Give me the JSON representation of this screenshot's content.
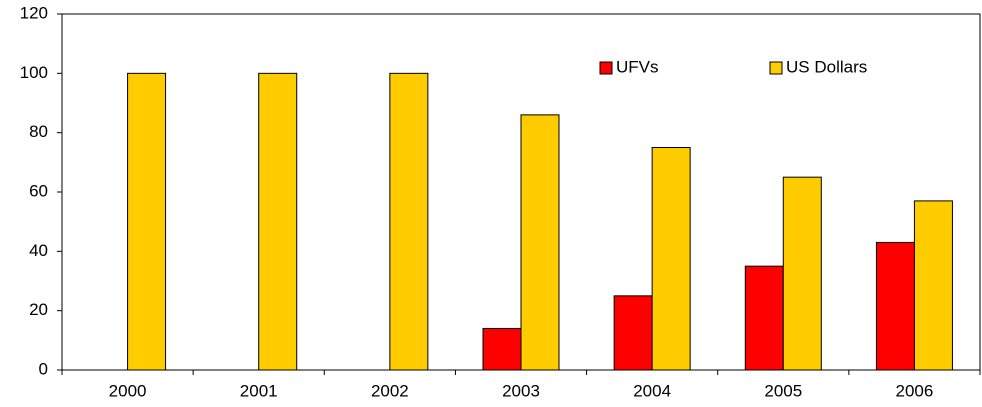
{
  "chart_data": {
    "type": "bar",
    "categories": [
      "2000",
      "2001",
      "2002",
      "2003",
      "2004",
      "2005",
      "2006"
    ],
    "series": [
      {
        "name": "UFVs",
        "color": "#ff0000",
        "values": [
          0,
          0,
          0,
          14,
          25,
          35,
          43
        ]
      },
      {
        "name": "US Dollars",
        "color": "#ffcc00",
        "values": [
          100,
          100,
          100,
          86,
          75,
          65,
          57
        ]
      }
    ],
    "ylim": [
      0,
      120
    ],
    "yticks": [
      0,
      20,
      40,
      60,
      80,
      100,
      120
    ],
    "grid": false,
    "legend": "top-right"
  }
}
